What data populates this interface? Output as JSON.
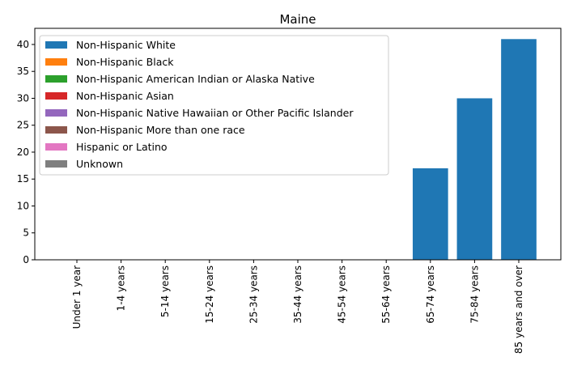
{
  "chart_data": {
    "type": "bar",
    "stacked": true,
    "title": "Maine",
    "xlabel": "",
    "ylabel": "",
    "ylim": [
      0,
      43
    ],
    "yticks": [
      0,
      5,
      10,
      15,
      20,
      25,
      30,
      35,
      40
    ],
    "grid": false,
    "legend_position": "top-left",
    "categories": [
      "Under 1 year",
      "1-4 years",
      "5-14 years",
      "15-24 years",
      "25-34 years",
      "35-44 years",
      "45-54 years",
      "55-64 years",
      "65-74 years",
      "75-84 years",
      "85 years and over"
    ],
    "series": [
      {
        "name": "Non-Hispanic White",
        "color": "#1f77b4",
        "values": [
          0,
          0,
          0,
          0,
          0,
          0,
          0,
          0,
          17,
          30,
          41
        ]
      },
      {
        "name": "Non-Hispanic Black",
        "color": "#ff7f0e",
        "values": [
          0,
          0,
          0,
          0,
          0,
          0,
          0,
          0,
          0,
          0,
          0
        ]
      },
      {
        "name": "Non-Hispanic American Indian or Alaska Native",
        "color": "#2ca02c",
        "values": [
          0,
          0,
          0,
          0,
          0,
          0,
          0,
          0,
          0,
          0,
          0
        ]
      },
      {
        "name": "Non-Hispanic Asian",
        "color": "#d62728",
        "values": [
          0,
          0,
          0,
          0,
          0,
          0,
          0,
          0,
          0,
          0,
          0
        ]
      },
      {
        "name": "Non-Hispanic Native Hawaiian or Other Pacific Islander",
        "color": "#9467bd",
        "values": [
          0,
          0,
          0,
          0,
          0,
          0,
          0,
          0,
          0,
          0,
          0
        ]
      },
      {
        "name": "Non-Hispanic More than one race",
        "color": "#8c564b",
        "values": [
          0,
          0,
          0,
          0,
          0,
          0,
          0,
          0,
          0,
          0,
          0
        ]
      },
      {
        "name": "Hispanic or Latino",
        "color": "#e377c2",
        "values": [
          0,
          0,
          0,
          0,
          0,
          0,
          0,
          0,
          0,
          0,
          0
        ]
      },
      {
        "name": "Unknown",
        "color": "#7f7f7f",
        "values": [
          0,
          0,
          0,
          0,
          0,
          0,
          0,
          0,
          0,
          0,
          0
        ]
      }
    ]
  }
}
